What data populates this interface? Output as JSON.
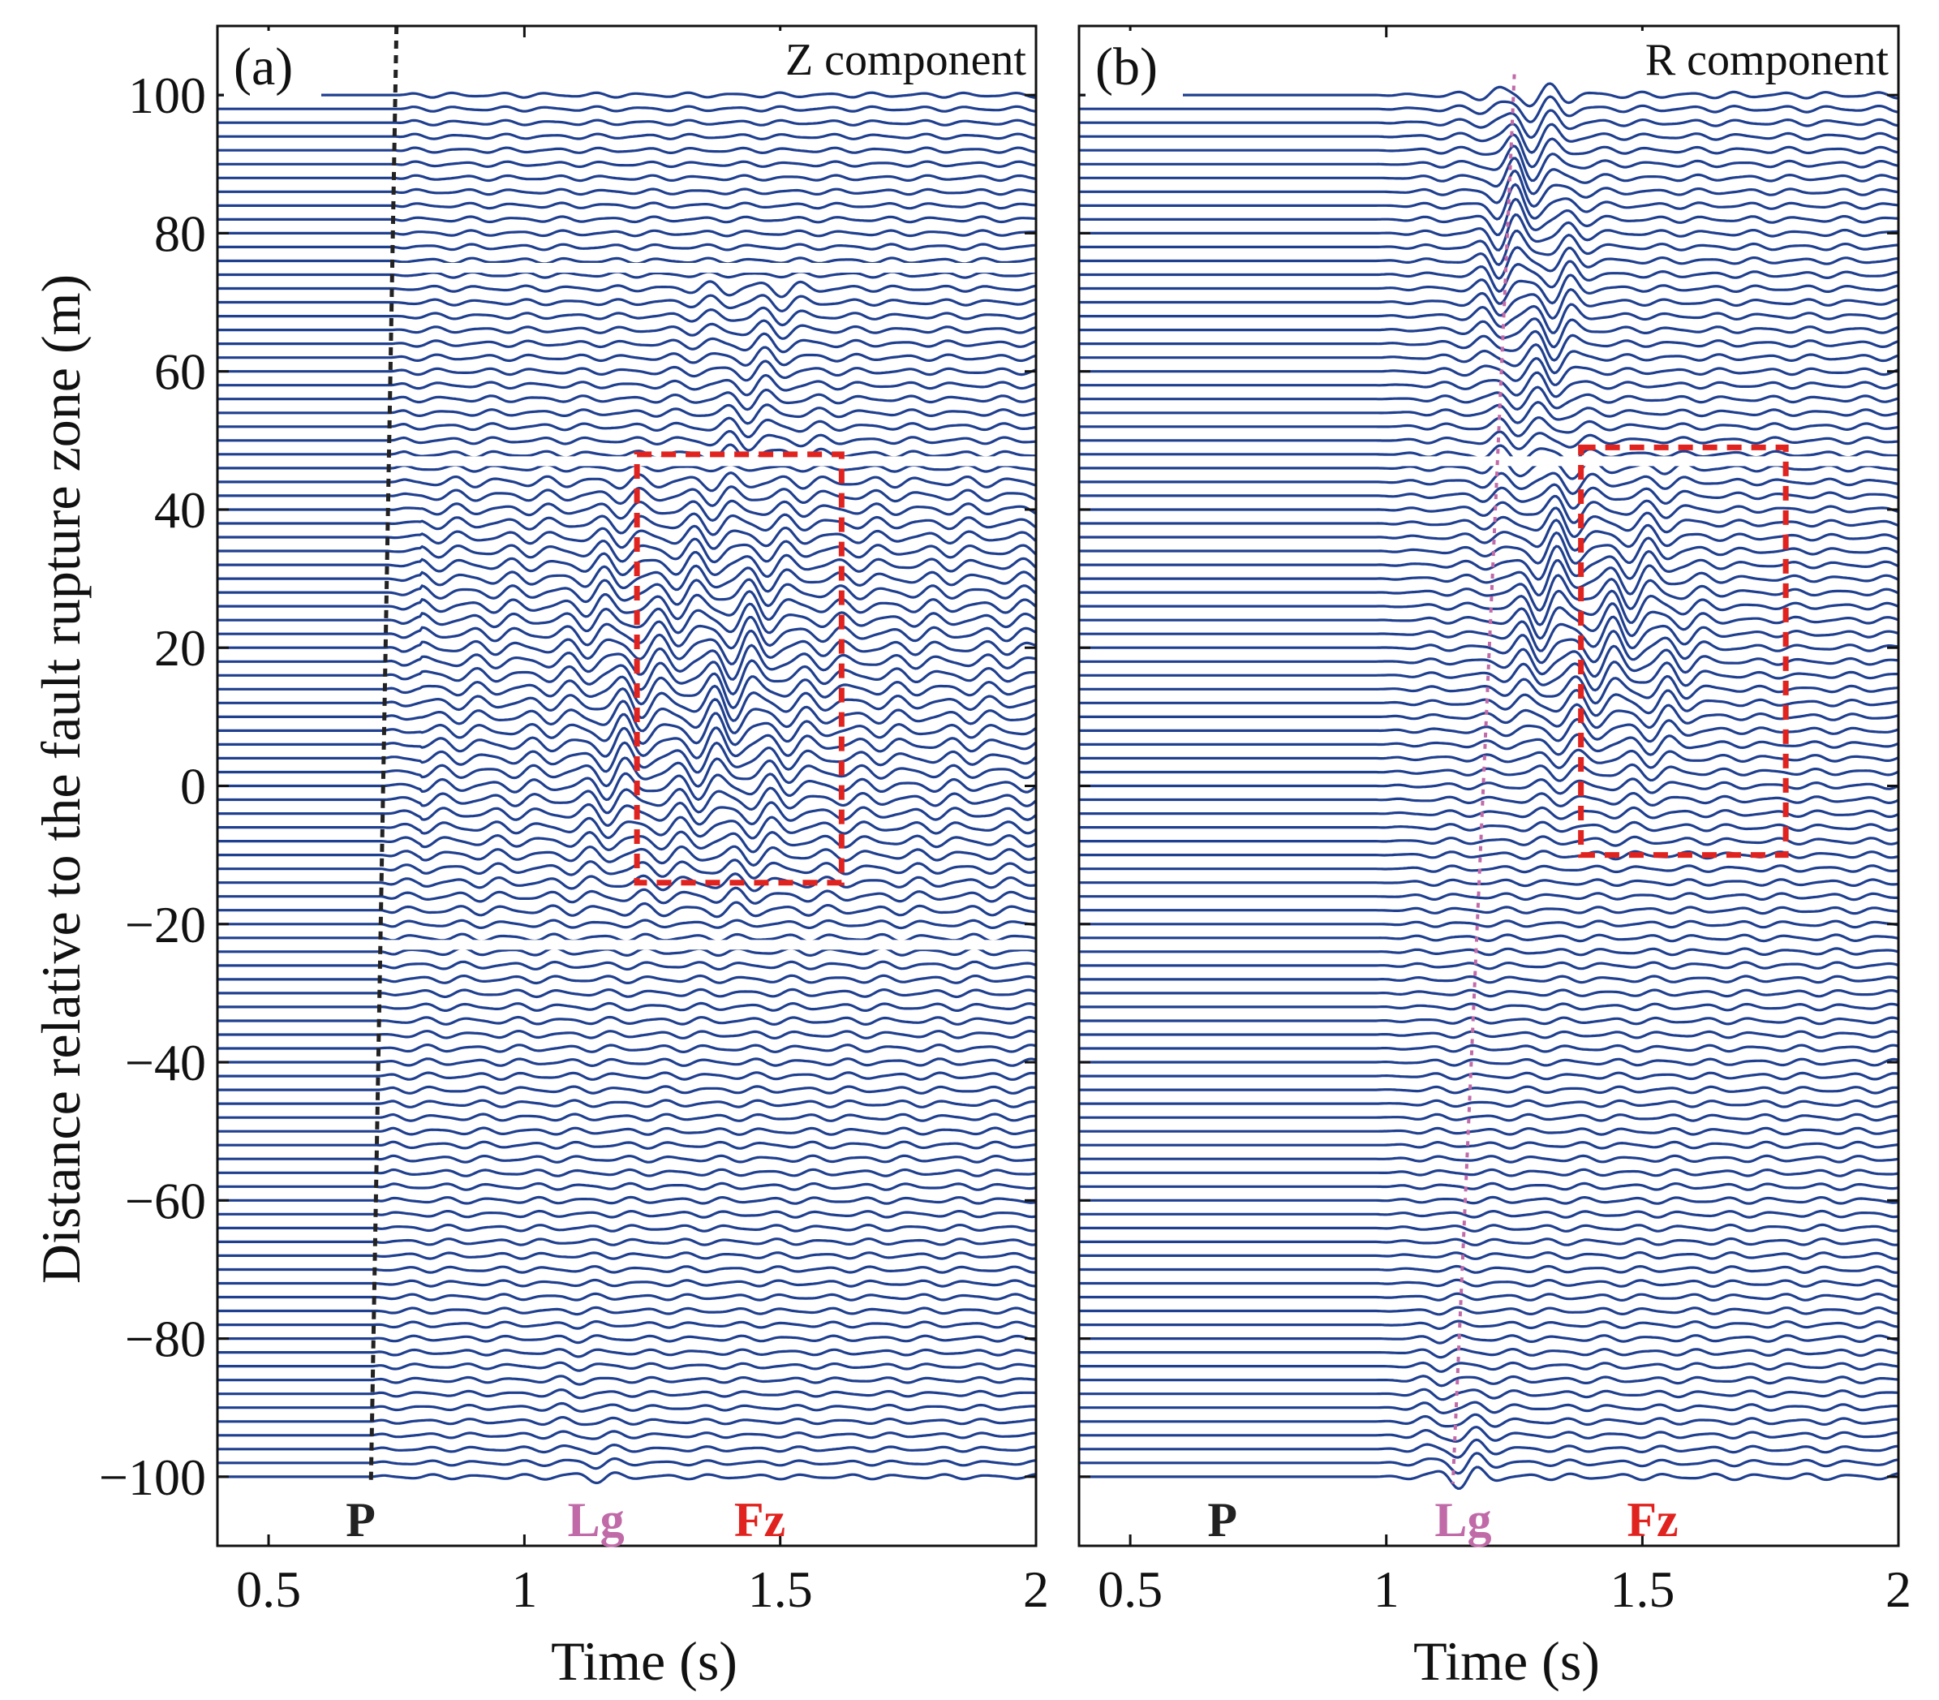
{
  "figure": {
    "ylabel": "Distance relative to the fault rupture zone (m)",
    "xlabel": "Time (s)"
  },
  "colors": {
    "trace": "#1f3f8f",
    "p_marker": "#222222",
    "lg_marker": "#c06aa8",
    "fz_box": "#e0231e",
    "frame": "#111111"
  },
  "chart_data": [
    {
      "type": "line",
      "panel_label": "(a)",
      "component_label": "Z component",
      "title": "",
      "xlabel": "Time (s)",
      "ylabel": "Distance relative to the fault rupture zone (m)",
      "xlim": [
        0.4,
        2.0
      ],
      "ylim": [
        -110,
        110
      ],
      "xticks": [
        0.5,
        1,
        1.5,
        2
      ],
      "xtick_labels": [
        "0.5",
        "1",
        "1.5",
        "2"
      ],
      "yticks": [
        100,
        80,
        60,
        40,
        20,
        0,
        -20,
        -40,
        -60,
        -80,
        -100
      ],
      "ytick_labels": [
        "100",
        "80",
        "60",
        "40",
        "20",
        "0",
        "−20",
        "−40",
        "−60",
        "−80",
        "−100"
      ],
      "trace_spacing_m": 2,
      "trace_range_m": [
        -100,
        100
      ],
      "amplitude_gaps_m": [
        75,
        47,
        -23
      ],
      "phase_labels": [
        {
          "text": "P",
          "time_s": 0.68,
          "color": "p_marker"
        },
        {
          "text": "Lg",
          "time_s": 1.14,
          "color": "lg_marker"
        },
        {
          "text": "Fz",
          "time_s": 1.46,
          "color": "fz_box"
        }
      ],
      "p_arrival_line": {
        "time_at_top_s": 0.75,
        "time_at_bottom_s": 0.7,
        "distance_top_m": 100,
        "distance_bottom_m": -100
      },
      "fz_box": {
        "t0_s": 1.22,
        "t1_s": 1.62,
        "d_top_m": 48,
        "d_bottom_m": -14
      }
    },
    {
      "type": "line",
      "panel_label": "(b)",
      "component_label": "R component",
      "title": "",
      "xlabel": "Time (s)",
      "ylabel": "",
      "xlim": [
        0.4,
        2.0
      ],
      "ylim": [
        -110,
        110
      ],
      "xticks": [
        0.5,
        1,
        1.5,
        2
      ],
      "xtick_labels": [
        "0.5",
        "1",
        "1.5",
        "2"
      ],
      "yticks": [
        100,
        80,
        60,
        40,
        20,
        0,
        -20,
        -40,
        -60,
        -80,
        -100
      ],
      "trace_spacing_m": 2,
      "trace_range_m": [
        -100,
        100
      ],
      "amplitude_gaps_m": [
        47
      ],
      "phase_labels": [
        {
          "text": "P",
          "time_s": 0.68,
          "color": "p_marker"
        },
        {
          "text": "Lg",
          "time_s": 1.15,
          "color": "lg_marker"
        },
        {
          "text": "Fz",
          "time_s": 1.52,
          "color": "fz_box"
        }
      ],
      "lg_arrival_line": {
        "time_at_top_s": 1.25,
        "time_at_bottom_s": 1.13,
        "distance_top_m": 103,
        "distance_bottom_m": -101
      },
      "fz_box": {
        "t0_s": 1.38,
        "t1_s": 1.78,
        "d_top_m": 49,
        "d_bottom_m": -10
      }
    }
  ]
}
